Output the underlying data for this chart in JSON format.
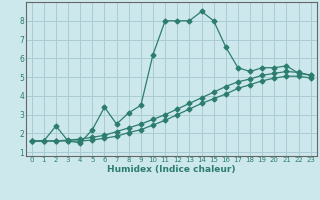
{
  "xlabel": "Humidex (Indice chaleur)",
  "xlim": [
    -0.5,
    23.5
  ],
  "ylim": [
    0.8,
    9.0
  ],
  "xticks": [
    0,
    1,
    2,
    3,
    4,
    5,
    6,
    7,
    8,
    9,
    10,
    11,
    12,
    13,
    14,
    15,
    16,
    17,
    18,
    19,
    20,
    21,
    22,
    23
  ],
  "yticks": [
    1,
    2,
    3,
    4,
    5,
    6,
    7,
    8
  ],
  "bg_color": "#cce8ec",
  "line_color": "#2d7d6e",
  "grid_color": "#aaccd4",
  "line1_x": [
    0,
    1,
    2,
    3,
    4,
    5,
    6,
    7,
    8,
    9,
    10,
    11,
    12,
    13,
    14,
    15,
    16,
    17,
    18,
    19,
    20,
    21,
    22,
    23
  ],
  "line1_y": [
    1.6,
    1.6,
    2.4,
    1.6,
    1.5,
    2.2,
    3.4,
    2.5,
    3.1,
    3.5,
    6.2,
    8.0,
    8.0,
    8.0,
    8.5,
    8.0,
    6.6,
    5.5,
    5.3,
    5.5,
    5.5,
    5.6,
    5.2,
    5.1
  ],
  "line2_x": [
    0,
    1,
    2,
    3,
    4,
    5,
    6,
    7,
    8,
    9,
    10,
    11,
    12,
    13,
    14,
    15,
    16,
    17,
    18,
    19,
    20,
    21,
    22,
    23
  ],
  "line2_y": [
    1.6,
    1.6,
    1.6,
    1.65,
    1.7,
    1.8,
    1.9,
    2.1,
    2.3,
    2.5,
    2.75,
    3.0,
    3.3,
    3.6,
    3.9,
    4.2,
    4.5,
    4.75,
    4.9,
    5.1,
    5.2,
    5.3,
    5.25,
    5.1
  ],
  "line3_x": [
    0,
    1,
    2,
    3,
    4,
    5,
    6,
    7,
    8,
    9,
    10,
    11,
    12,
    13,
    14,
    15,
    16,
    17,
    18,
    19,
    20,
    21,
    22,
    23
  ],
  "line3_y": [
    1.6,
    1.6,
    1.6,
    1.6,
    1.6,
    1.65,
    1.75,
    1.85,
    2.05,
    2.2,
    2.45,
    2.7,
    3.0,
    3.3,
    3.6,
    3.85,
    4.1,
    4.4,
    4.6,
    4.8,
    4.95,
    5.05,
    5.05,
    4.95
  ]
}
